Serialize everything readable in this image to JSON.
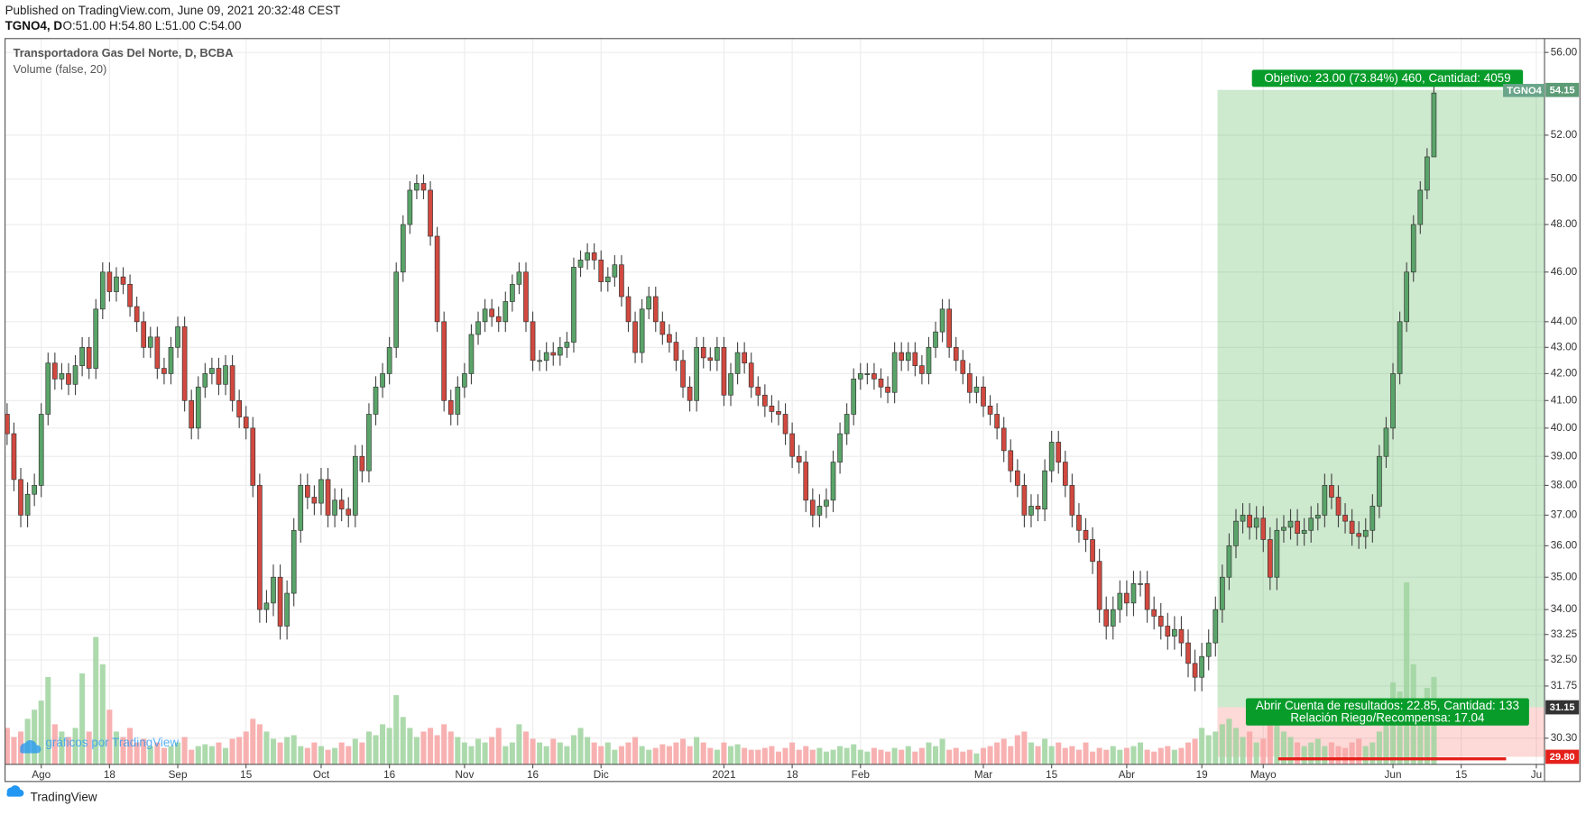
{
  "header": {
    "published": "Published on TradingView.com, June 09, 2021 20:32:48 CEST",
    "symbol": "TGNO4, D",
    "ohlc": "O:51.00 H:54.80 L:51.00 C:54.00"
  },
  "watermark": "gráficos por TradingView",
  "footer": "TradingView",
  "chart_data": {
    "type": "candlestick",
    "title": "Transportadora Gas Del Norte, D, BCBA",
    "volume_label": "Volume (false, 20)",
    "symbol_tag": "TGNO4",
    "log_scale": true,
    "grid": true,
    "up_color": "#5aa469",
    "down_color": "#d2493f",
    "volume_up_color": "#9fd49f",
    "volume_down_color": "#f7a3a3",
    "xlim": [
      -0.3,
      225.2
    ],
    "ylim": [
      29.6,
      56.7
    ],
    "xticks": [
      {
        "value": 5,
        "label": "Ago"
      },
      {
        "value": 15,
        "label": "18"
      },
      {
        "value": 25,
        "label": "Sep"
      },
      {
        "value": 35,
        "label": "15"
      },
      {
        "value": 46,
        "label": "Oct"
      },
      {
        "value": 56,
        "label": "16"
      },
      {
        "value": 67,
        "label": "Nov"
      },
      {
        "value": 77,
        "label": "16"
      },
      {
        "value": 87,
        "label": "Dic"
      },
      {
        "value": 105,
        "label": "2021"
      },
      {
        "value": 115,
        "label": "18"
      },
      {
        "value": 125,
        "label": "Feb"
      },
      {
        "value": 143,
        "label": "Mar"
      },
      {
        "value": 153,
        "label": "15"
      },
      {
        "value": 164,
        "label": "Abr"
      },
      {
        "value": 175,
        "label": "19"
      },
      {
        "value": 184,
        "label": "Mayo"
      },
      {
        "value": 203,
        "label": "Jun"
      },
      {
        "value": 213,
        "label": "15"
      },
      {
        "value": 224,
        "label": "Ju"
      }
    ],
    "yticks": [
      {
        "value": 56,
        "label": "56.00"
      },
      {
        "value": 52,
        "label": "52.00"
      },
      {
        "value": 50,
        "label": "50.00"
      },
      {
        "value": 48,
        "label": "48.00"
      },
      {
        "value": 46,
        "label": "46.00"
      },
      {
        "value": 44,
        "label": "44.00"
      },
      {
        "value": 43,
        "label": "43.00"
      },
      {
        "value": 42,
        "label": "42.00"
      },
      {
        "value": 41,
        "label": "41.00"
      },
      {
        "value": 40,
        "label": "40.00"
      },
      {
        "value": 39,
        "label": "39.00"
      },
      {
        "value": 38,
        "label": "38.00"
      },
      {
        "value": 37,
        "label": "37.00"
      },
      {
        "value": 36,
        "label": "36.00"
      },
      {
        "value": 35,
        "label": "35.00"
      },
      {
        "value": 34,
        "label": "34.00"
      },
      {
        "value": 33.25,
        "label": "33.25"
      },
      {
        "value": 32.5,
        "label": "32.50"
      },
      {
        "value": 31.75,
        "label": "31.75"
      },
      {
        "value": 30.3,
        "label": "30.30"
      }
    ],
    "open": [
      40.5,
      39.8,
      38.2,
      37.0,
      37.7,
      38.0,
      40.5,
      42.4,
      41.8,
      42.0,
      41.6,
      42.3,
      43.0,
      42.2,
      44.5,
      46.0,
      45.2,
      45.8,
      45.5,
      44.6,
      44.0,
      43.0,
      43.4,
      42.2,
      42.0,
      43.0,
      43.8,
      41.0,
      40.0,
      41.5,
      42.0,
      42.2,
      41.6,
      42.3,
      41.0,
      40.4,
      40.0,
      38.0,
      34.0,
      34.2,
      35.0,
      33.5,
      34.5,
      36.5,
      38.0,
      37.6,
      37.4,
      38.2,
      37.0,
      37.5,
      37.2,
      37.0,
      39.0,
      38.5,
      40.5,
      41.5,
      42.0,
      43.0,
      46.0,
      48.0,
      49.5,
      49.8,
      49.5,
      47.5,
      44.0,
      41.0,
      40.5,
      41.5,
      42.0,
      43.5,
      44.0,
      44.5,
      44.2,
      44.0,
      44.8,
      45.5,
      46.0,
      44.0,
      42.5,
      42.5,
      42.8,
      42.7,
      43.0,
      43.2,
      46.2,
      46.5,
      46.8,
      46.5,
      45.6,
      45.8,
      46.3,
      45.0,
      44.0,
      42.8,
      44.5,
      45.0,
      44.0,
      43.5,
      43.2,
      42.5,
      41.5,
      41.0,
      43.0,
      42.6,
      42.5,
      43.0,
      41.2,
      42.0,
      42.8,
      42.4,
      41.5,
      41.2,
      40.8,
      40.6,
      40.5,
      39.8,
      39.0,
      38.8,
      37.5,
      37.0,
      37.3,
      37.5,
      38.8,
      39.8,
      40.5,
      41.8,
      42.0,
      42.0,
      41.8,
      41.5,
      41.3,
      42.8,
      42.5,
      42.8,
      42.3,
      42.0,
      43.0,
      43.6,
      44.5,
      43.0,
      42.5,
      42.0,
      41.3,
      41.5,
      40.8,
      40.5,
      40.0,
      39.2,
      38.5,
      38.0,
      37.0,
      37.3,
      37.2,
      38.5,
      39.5,
      38.8,
      38.0,
      37.0,
      36.5,
      36.2,
      35.5,
      34.0,
      33.5,
      34.0,
      34.5,
      34.2,
      34.8,
      34.8,
      34.0,
      33.8,
      33.5,
      33.2,
      33.4,
      33.0,
      32.4,
      32.0,
      32.6,
      33.0,
      34.0,
      35.0,
      36.0,
      36.8,
      37.0,
      36.6,
      36.9,
      36.2,
      35.0,
      36.5,
      36.6,
      36.8,
      36.4,
      36.5,
      36.9,
      37.0,
      38.0,
      37.6,
      37.0,
      36.8,
      36.4,
      36.3,
      36.5,
      37.3,
      39.0,
      40.0,
      42.0,
      44.0,
      46.0,
      48.0,
      49.5,
      51.0
    ],
    "high": [
      40.9,
      40.2,
      38.6,
      38.1,
      38.4,
      40.9,
      42.8,
      42.8,
      42.4,
      42.4,
      42.7,
      43.4,
      43.4,
      44.9,
      46.4,
      46.4,
      46.2,
      46.2,
      45.9,
      45.0,
      44.4,
      43.8,
      43.8,
      42.6,
      43.4,
      44.2,
      44.2,
      41.4,
      41.9,
      42.4,
      42.6,
      42.6,
      42.7,
      42.7,
      41.4,
      40.8,
      40.4,
      38.4,
      34.6,
      35.4,
      35.4,
      34.9,
      36.9,
      38.4,
      38.4,
      38.0,
      38.6,
      38.6,
      37.9,
      37.9,
      37.6,
      39.4,
      39.4,
      40.9,
      41.9,
      42.4,
      43.4,
      46.4,
      48.4,
      49.9,
      50.2,
      50.2,
      49.9,
      47.9,
      44.4,
      41.4,
      41.9,
      42.4,
      43.9,
      44.4,
      44.9,
      44.9,
      44.6,
      45.2,
      45.9,
      46.4,
      46.4,
      44.4,
      42.9,
      43.2,
      43.2,
      43.4,
      43.6,
      46.6,
      46.9,
      47.2,
      47.2,
      46.9,
      46.2,
      46.7,
      46.7,
      45.4,
      44.4,
      44.9,
      45.4,
      45.4,
      44.4,
      43.9,
      43.6,
      42.9,
      41.9,
      43.4,
      43.4,
      43.0,
      43.4,
      43.4,
      42.4,
      43.2,
      43.2,
      42.8,
      41.9,
      41.6,
      41.2,
      41.0,
      40.9,
      40.2,
      39.4,
      39.2,
      37.9,
      37.7,
      37.9,
      39.2,
      40.2,
      40.9,
      42.2,
      42.4,
      42.4,
      42.4,
      42.2,
      41.9,
      43.2,
      43.2,
      43.2,
      43.2,
      42.7,
      43.4,
      44.0,
      44.9,
      44.9,
      43.4,
      42.9,
      42.4,
      41.9,
      41.9,
      41.2,
      40.9,
      40.4,
      39.6,
      38.9,
      38.4,
      37.7,
      37.7,
      38.9,
      39.9,
      39.9,
      39.2,
      38.4,
      37.4,
      36.9,
      36.6,
      35.9,
      34.4,
      34.4,
      34.9,
      34.9,
      35.2,
      35.2,
      35.2,
      34.4,
      34.2,
      33.9,
      33.8,
      33.8,
      33.4,
      32.8,
      33.0,
      33.4,
      34.4,
      35.4,
      36.4,
      37.2,
      37.4,
      37.4,
      37.3,
      37.3,
      36.6,
      36.9,
      37.0,
      37.2,
      37.2,
      36.9,
      37.3,
      37.4,
      38.4,
      38.4,
      38.0,
      37.4,
      37.2,
      36.8,
      36.9,
      37.7,
      39.4,
      40.4,
      42.4,
      44.4,
      46.4,
      48.4,
      49.9,
      51.4,
      54.8
    ],
    "low": [
      39.4,
      37.8,
      36.6,
      36.6,
      37.3,
      37.6,
      40.1,
      41.4,
      41.4,
      41.2,
      41.2,
      41.9,
      41.8,
      41.8,
      44.1,
      44.8,
      44.8,
      45.1,
      44.2,
      43.6,
      42.6,
      42.6,
      41.8,
      41.6,
      41.6,
      42.6,
      40.6,
      39.6,
      39.6,
      41.1,
      41.6,
      41.2,
      41.2,
      40.6,
      40.0,
      39.6,
      37.6,
      33.6,
      33.6,
      33.8,
      33.1,
      33.1,
      34.1,
      36.1,
      37.2,
      37.0,
      37.0,
      36.6,
      36.6,
      36.8,
      36.6,
      36.6,
      38.1,
      38.1,
      40.1,
      41.1,
      41.6,
      42.6,
      45.6,
      47.6,
      49.1,
      49.1,
      47.1,
      43.6,
      40.6,
      40.1,
      40.1,
      41.1,
      41.6,
      43.1,
      43.6,
      43.8,
      43.6,
      43.6,
      44.4,
      45.1,
      43.6,
      42.1,
      42.1,
      42.1,
      42.3,
      42.3,
      42.6,
      42.8,
      45.8,
      46.1,
      46.1,
      45.2,
      45.2,
      45.4,
      44.6,
      43.6,
      42.4,
      42.4,
      44.1,
      43.6,
      43.1,
      42.8,
      42.1,
      41.1,
      40.6,
      40.6,
      42.2,
      42.1,
      42.1,
      40.8,
      40.8,
      41.6,
      42.0,
      41.1,
      40.8,
      40.4,
      40.2,
      40.1,
      39.4,
      38.6,
      38.4,
      37.1,
      36.6,
      36.6,
      36.9,
      37.1,
      38.4,
      39.4,
      40.1,
      41.4,
      41.6,
      41.4,
      41.1,
      40.9,
      40.9,
      42.1,
      42.1,
      41.9,
      41.6,
      41.6,
      42.6,
      43.2,
      42.6,
      42.1,
      41.6,
      40.9,
      40.9,
      40.4,
      40.1,
      39.6,
      38.8,
      38.1,
      37.6,
      36.6,
      36.6,
      36.8,
      36.8,
      38.1,
      38.4,
      37.6,
      36.6,
      36.1,
      35.8,
      35.1,
      33.6,
      33.1,
      33.1,
      33.6,
      33.8,
      33.8,
      34.4,
      33.6,
      33.4,
      33.1,
      32.8,
      32.8,
      32.6,
      32.0,
      31.6,
      31.6,
      32.2,
      32.6,
      33.6,
      34.6,
      35.6,
      36.4,
      36.2,
      36.2,
      35.8,
      34.6,
      34.6,
      36.1,
      36.2,
      36.0,
      36.0,
      36.1,
      36.5,
      36.6,
      37.2,
      36.6,
      36.4,
      36.0,
      35.9,
      35.9,
      36.1,
      36.9,
      38.6,
      39.6,
      41.6,
      43.6,
      45.6,
      47.6,
      49.1,
      51.0
    ],
    "close": [
      39.8,
      38.2,
      37.0,
      37.7,
      38.0,
      40.5,
      42.4,
      41.8,
      42.0,
      41.6,
      42.3,
      43.0,
      42.2,
      44.5,
      46.0,
      45.2,
      45.8,
      45.5,
      44.6,
      44.0,
      43.0,
      43.4,
      42.2,
      42.0,
      43.0,
      43.8,
      41.0,
      40.0,
      41.5,
      42.0,
      42.2,
      41.6,
      42.3,
      41.0,
      40.4,
      40.0,
      38.0,
      34.0,
      34.2,
      35.0,
      33.5,
      34.5,
      36.5,
      38.0,
      37.6,
      37.4,
      38.2,
      37.0,
      37.5,
      37.2,
      37.0,
      39.0,
      38.5,
      40.5,
      41.5,
      42.0,
      43.0,
      46.0,
      48.0,
      49.5,
      49.8,
      49.5,
      47.5,
      44.0,
      41.0,
      40.5,
      41.5,
      42.0,
      43.5,
      44.0,
      44.5,
      44.2,
      44.0,
      44.8,
      45.5,
      46.0,
      44.0,
      42.5,
      42.5,
      42.8,
      42.7,
      43.0,
      43.2,
      46.2,
      46.5,
      46.8,
      46.5,
      45.6,
      45.8,
      46.3,
      45.0,
      44.0,
      42.8,
      44.5,
      45.0,
      44.0,
      43.5,
      43.2,
      42.5,
      41.5,
      41.0,
      43.0,
      42.6,
      42.5,
      43.0,
      41.2,
      42.0,
      42.8,
      42.4,
      41.5,
      41.2,
      40.8,
      40.6,
      40.5,
      39.8,
      39.0,
      38.8,
      37.5,
      37.0,
      37.3,
      37.5,
      38.8,
      39.8,
      40.5,
      41.8,
      42.0,
      42.0,
      41.8,
      41.5,
      41.3,
      42.8,
      42.5,
      42.8,
      42.3,
      42.0,
      43.0,
      43.6,
      44.5,
      43.0,
      42.5,
      42.0,
      41.3,
      41.5,
      40.8,
      40.5,
      40.0,
      39.2,
      38.5,
      38.0,
      37.0,
      37.3,
      37.2,
      38.5,
      39.5,
      38.8,
      38.0,
      37.0,
      36.5,
      36.2,
      35.5,
      34.0,
      33.5,
      34.0,
      34.5,
      34.2,
      34.8,
      34.8,
      34.0,
      33.8,
      33.5,
      33.2,
      33.4,
      33.0,
      32.4,
      32.0,
      32.6,
      33.0,
      34.0,
      35.0,
      36.0,
      36.8,
      37.0,
      36.6,
      36.9,
      36.2,
      35.0,
      36.5,
      36.6,
      36.8,
      36.4,
      36.5,
      36.9,
      37.0,
      38.0,
      37.6,
      37.0,
      36.8,
      36.4,
      36.3,
      36.5,
      37.3,
      39.0,
      40.0,
      42.0,
      44.0,
      46.0,
      48.0,
      49.5,
      51.0,
      54.0
    ],
    "volume": [
      20,
      15,
      18,
      25,
      30,
      35,
      48,
      22,
      18,
      15,
      20,
      50,
      18,
      70,
      55,
      30,
      18,
      15,
      20,
      12,
      14,
      10,
      12,
      9,
      10,
      12,
      15,
      8,
      10,
      11,
      10,
      12,
      9,
      14,
      15,
      18,
      25,
      22,
      18,
      14,
      12,
      15,
      16,
      10,
      9,
      12,
      10,
      8,
      9,
      12,
      10,
      14,
      12,
      18,
      16,
      22,
      20,
      38,
      26,
      20,
      15,
      18,
      20,
      16,
      22,
      18,
      15,
      12,
      10,
      14,
      12,
      15,
      20,
      10,
      12,
      22,
      18,
      14,
      12,
      10,
      14,
      12,
      10,
      16,
      20,
      15,
      12,
      10,
      12,
      8,
      10,
      12,
      15,
      10,
      8,
      9,
      11,
      10,
      12,
      14,
      10,
      15,
      12,
      9,
      8,
      12,
      10,
      11,
      9,
      8,
      8,
      9,
      10,
      7,
      9,
      12,
      8,
      10,
      8,
      9,
      7,
      8,
      10,
      9,
      11,
      8,
      7,
      9,
      8,
      7,
      9,
      8,
      10,
      7,
      9,
      12,
      10,
      14,
      8,
      9,
      7,
      8,
      6,
      9,
      10,
      12,
      14,
      10,
      16,
      18,
      12,
      10,
      14,
      10,
      12,
      9,
      10,
      8,
      12,
      7,
      9,
      8,
      10,
      8,
      9,
      10,
      12,
      8,
      7,
      9,
      10,
      8,
      9,
      12,
      14,
      20,
      16,
      18,
      22,
      25,
      20,
      15,
      18,
      12,
      14,
      25,
      30,
      18,
      15,
      12,
      10,
      12,
      14,
      10,
      12,
      10,
      9,
      12,
      14,
      10,
      12,
      18,
      25,
      45,
      40,
      100,
      55,
      30,
      42,
      48
    ],
    "position": {
      "start": 177.3,
      "target": {
        "value": 54.15,
        "label": "54.15"
      },
      "entry": {
        "value": 31.15,
        "label": "31.15"
      },
      "stop": {
        "value": 29.8,
        "label": "29.80"
      },
      "target_text": "Objetivo: 23.00 (73.84%) 460, Cantidad: 4059",
      "entry_text": "Abrir Cuenta de resultados: 22.85, Cantidad: 133",
      "ratio_text": "Relación Riego/Recompensa: 17.04"
    }
  }
}
